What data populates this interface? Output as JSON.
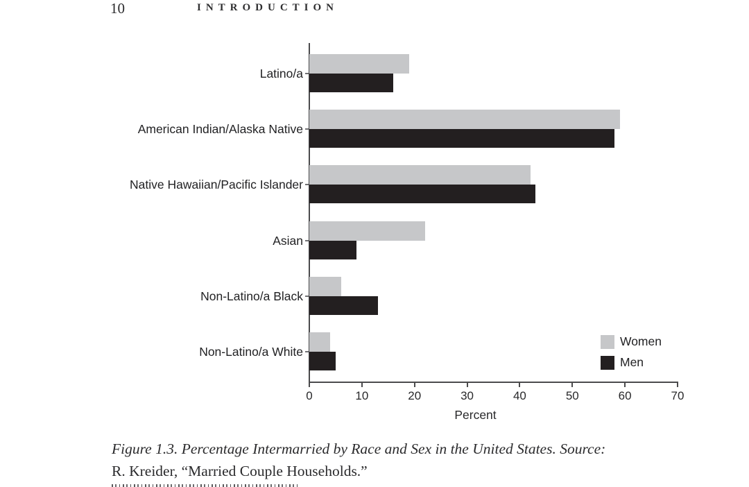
{
  "page": {
    "number": "10",
    "running_head": "INTRODUCTION"
  },
  "chart_data": {
    "type": "bar",
    "orientation": "horizontal",
    "title": "",
    "categories": [
      "Latino/a",
      "American Indian/Alaska Native",
      "Native Hawaiian/Pacific Islander",
      "Asian",
      "Non-Latino/a Black",
      "Non-Latino/a White"
    ],
    "series": [
      {
        "name": "Women",
        "color": "#c6c7c9",
        "values": [
          19,
          59,
          42,
          22,
          6,
          4
        ]
      },
      {
        "name": "Men",
        "color": "#231f20",
        "values": [
          16,
          58,
          43,
          9,
          13,
          5
        ]
      }
    ],
    "xlabel": "Percent",
    "xlim": [
      0,
      70
    ],
    "xticks": [
      0,
      10,
      20,
      30,
      40,
      50,
      60,
      70
    ],
    "grid": false,
    "legend_position": "bottom-right"
  },
  "caption": {
    "line1": "Figure 1.3.  Percentage Intermarried by Race and Sex in the United States. Source:",
    "line2": "R. Kreider, “Married Couple Households.”"
  },
  "colors": {
    "women_bar": "#c6c7c9",
    "men_bar": "#231f20",
    "axis": "#4a4a4c",
    "background": "#ffffff"
  }
}
